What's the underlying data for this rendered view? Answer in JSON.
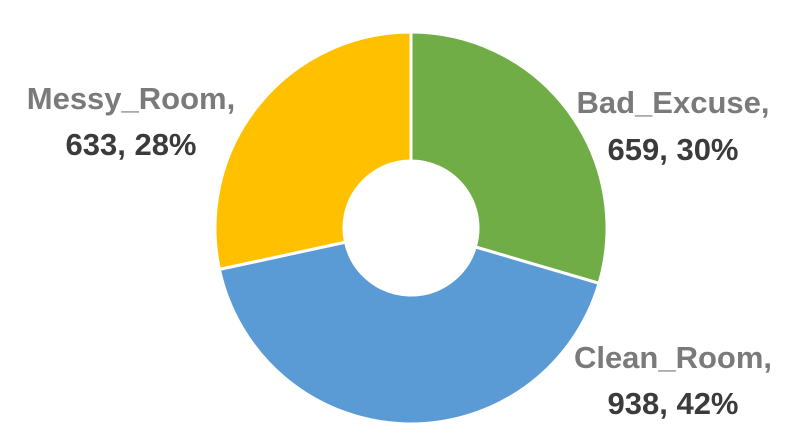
{
  "chart_data": {
    "type": "pie",
    "variant": "donut",
    "slices": [
      {
        "label": "Bad_Excuse",
        "value": 659,
        "percent": "30%",
        "value_text": "659, 30%",
        "color": "#70ad47"
      },
      {
        "label": "Clean_Room",
        "value": 938,
        "percent": "42%",
        "value_text": "938, 42%",
        "color": "#5b9bd5"
      },
      {
        "label": "Messy_Room",
        "value": 633,
        "percent": "28%",
        "value_text": "633, 28%",
        "color": "#ffc000"
      }
    ],
    "slice_border_color": "#ffffff",
    "start_angle": "12 o'clock, clockwise",
    "legend": "none",
    "title": ""
  }
}
